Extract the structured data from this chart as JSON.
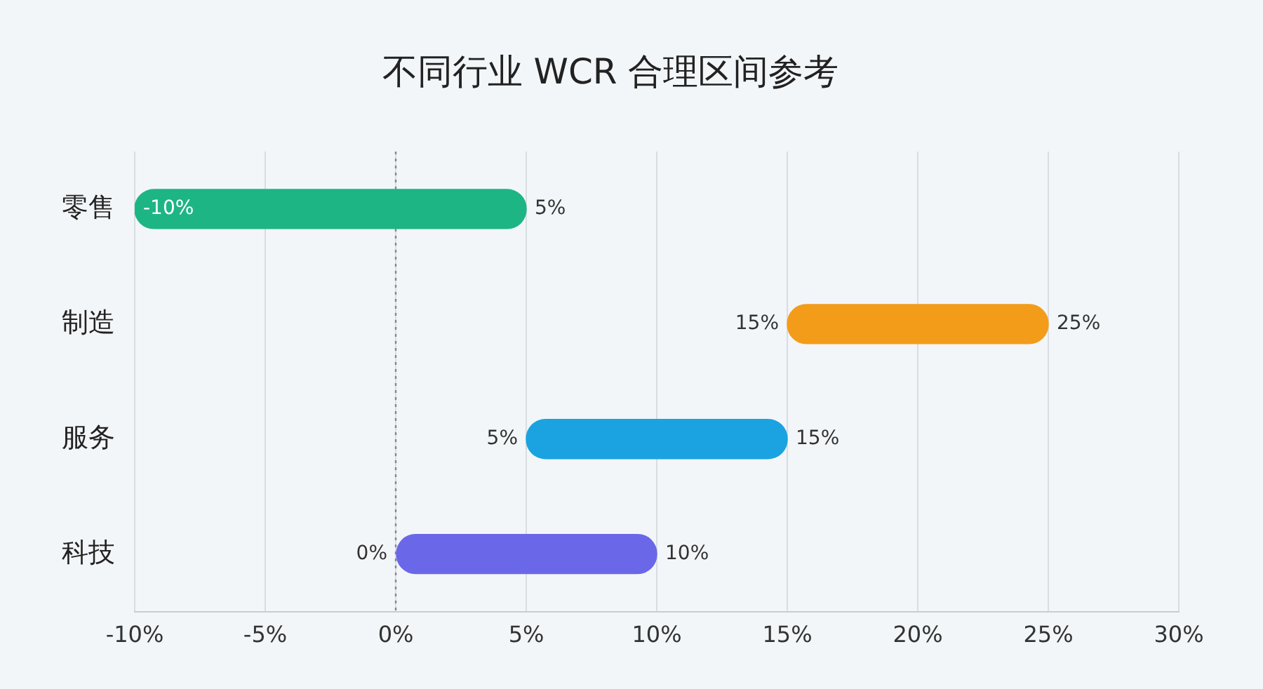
{
  "chart_data": {
    "type": "bar",
    "orientation": "horizontal",
    "title": "不同行业 WCR 合理区间参考",
    "categories": [
      "零售",
      "制造",
      "服务",
      "科技"
    ],
    "base": [
      -10,
      15,
      5,
      0
    ],
    "values": [
      15,
      10,
      10,
      10
    ],
    "colors": [
      "#1db584",
      "#f39c1a",
      "#1aa3e0",
      "#6a67e8"
    ],
    "xlim": [
      -10,
      30
    ],
    "xticks": [
      {
        "value": -10,
        "label": "-10%"
      },
      {
        "value": -5,
        "label": "-5%"
      },
      {
        "value": 0,
        "label": "0%"
      },
      {
        "value": 5,
        "label": "5%"
      },
      {
        "value": 10,
        "label": "10%"
      },
      {
        "value": 15,
        "label": "15%"
      },
      {
        "value": 20,
        "label": "20%"
      },
      {
        "value": 25,
        "label": "25%"
      },
      {
        "value": 30,
        "label": "30%"
      }
    ],
    "grid": "x",
    "legend": false,
    "ref_lines": [
      {
        "axis": "x",
        "value": 0,
        "color": "#888888",
        "line_style": "dotted"
      }
    ],
    "annotations": [
      {
        "text": "-10%",
        "x": -10,
        "y": "零售"
      },
      {
        "text": "5%",
        "x": 5,
        "y": "零售"
      },
      {
        "text": "15%",
        "x": 15,
        "y": "制造"
      },
      {
        "text": "25%",
        "x": 25,
        "y": "制造"
      },
      {
        "text": "5%",
        "x": 5,
        "y": "服务"
      },
      {
        "text": "15%",
        "x": 15,
        "y": "服务"
      },
      {
        "text": "0%",
        "x": 0,
        "y": "科技"
      },
      {
        "text": "10%",
        "x": 10,
        "y": "科技"
      }
    ]
  }
}
